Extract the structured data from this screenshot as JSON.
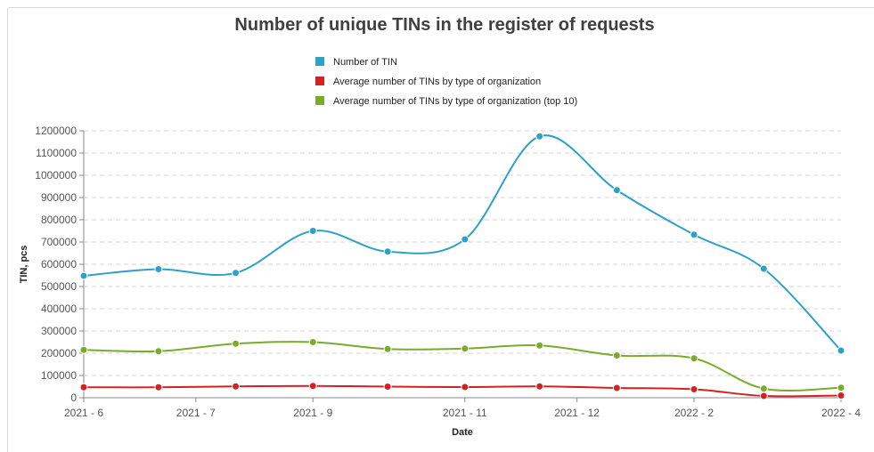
{
  "chart_data": {
    "type": "line",
    "title": "Number of unique TINs in the register of requests",
    "xlabel": "Date",
    "ylabel": "TIN, pcs",
    "ylim": [
      0,
      1200000
    ],
    "yticks": [
      0,
      100000,
      200000,
      300000,
      400000,
      500000,
      600000,
      700000,
      800000,
      900000,
      1000000,
      1100000,
      1200000
    ],
    "xlim": [
      "2021-06-01",
      "2022-04-01"
    ],
    "xticks": [
      {
        "date": "2021-06-01",
        "label": "2021 - 6"
      },
      {
        "date": "2021-07-16",
        "label": "2021 - 7"
      },
      {
        "date": "2021-09-01",
        "label": "2021 - 9"
      },
      {
        "date": "2021-11-01",
        "label": "2021 - 11"
      },
      {
        "date": "2021-12-16",
        "label": "2021 - 12"
      },
      {
        "date": "2022-02-01",
        "label": "2022 - 2"
      },
      {
        "date": "2022-04-01",
        "label": "2022 - 4"
      }
    ],
    "x": [
      "2021-06-01",
      "2021-07-01",
      "2021-08-01",
      "2021-09-01",
      "2021-10-01",
      "2021-11-01",
      "2021-12-01",
      "2022-01-01",
      "2022-02-01",
      "2022-03-01",
      "2022-04-01"
    ],
    "series": [
      {
        "name": "Number of TIN",
        "color": "#2ea1c8",
        "values": [
          548000,
          578000,
          561000,
          750000,
          657000,
          712000,
          1175000,
          933000,
          733000,
          580000,
          212000
        ]
      },
      {
        "name": "Average number of TINs by type of organization",
        "color": "#d42222",
        "values": [
          47000,
          47000,
          51000,
          53000,
          50000,
          48000,
          51000,
          44000,
          38000,
          8000,
          10000
        ]
      },
      {
        "name": "Average number of TINs by type of organization (top 10)",
        "color": "#7aab2c",
        "values": [
          215000,
          209000,
          243000,
          250000,
          219000,
          221000,
          235000,
          190000,
          177000,
          41000,
          45000
        ]
      }
    ],
    "grid": true,
    "legend_position": "top-center"
  }
}
